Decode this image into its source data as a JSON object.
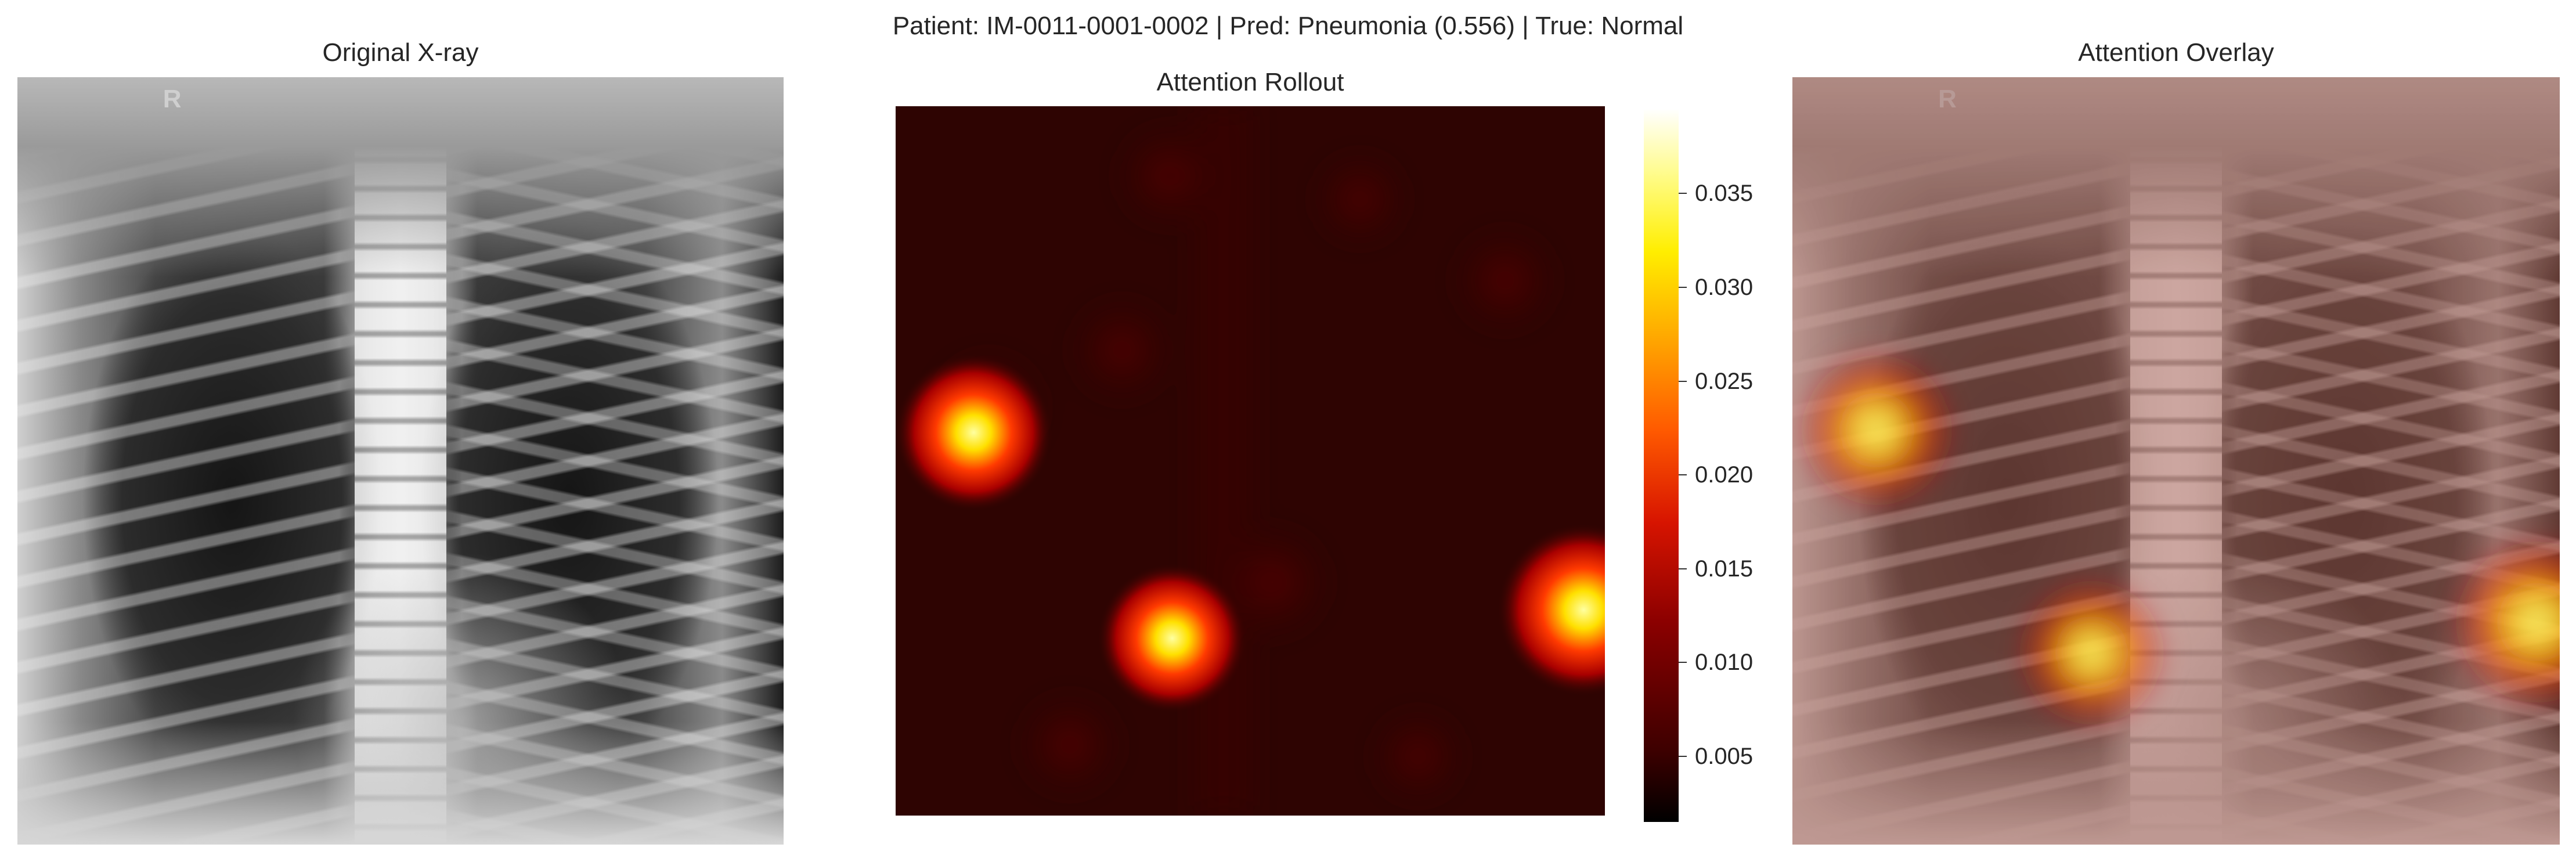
{
  "figure_title": "Patient: IM-0011-0001-0002 | Pred: Pneumonia (0.556) | True: Normal",
  "panels": {
    "original": {
      "title": "Original X-ray",
      "marker_letter": "R"
    },
    "rollout": {
      "title": "Attention Rollout"
    },
    "overlay": {
      "title": "Attention Overlay",
      "marker_letter": "R"
    }
  },
  "colorbar": {
    "colormap": "hot",
    "range": [
      0.0015,
      0.0395
    ],
    "ticks": [
      {
        "value": 0.005,
        "label": "0.005"
      },
      {
        "value": 0.01,
        "label": "0.010"
      },
      {
        "value": 0.015,
        "label": "0.015"
      },
      {
        "value": 0.02,
        "label": "0.020"
      },
      {
        "value": 0.025,
        "label": "0.025"
      },
      {
        "value": 0.03,
        "label": "0.030"
      },
      {
        "value": 0.035,
        "label": "0.035"
      }
    ]
  },
  "attention_hotspots": [
    {
      "col": 0.11,
      "row": 0.46,
      "value": 0.032
    },
    {
      "col": 0.39,
      "row": 0.75,
      "value": 0.028
    },
    {
      "col": 0.97,
      "row": 0.71,
      "value": 0.039
    }
  ],
  "colors": {
    "text": "#262626",
    "heatmap_background": "#2e0402"
  }
}
